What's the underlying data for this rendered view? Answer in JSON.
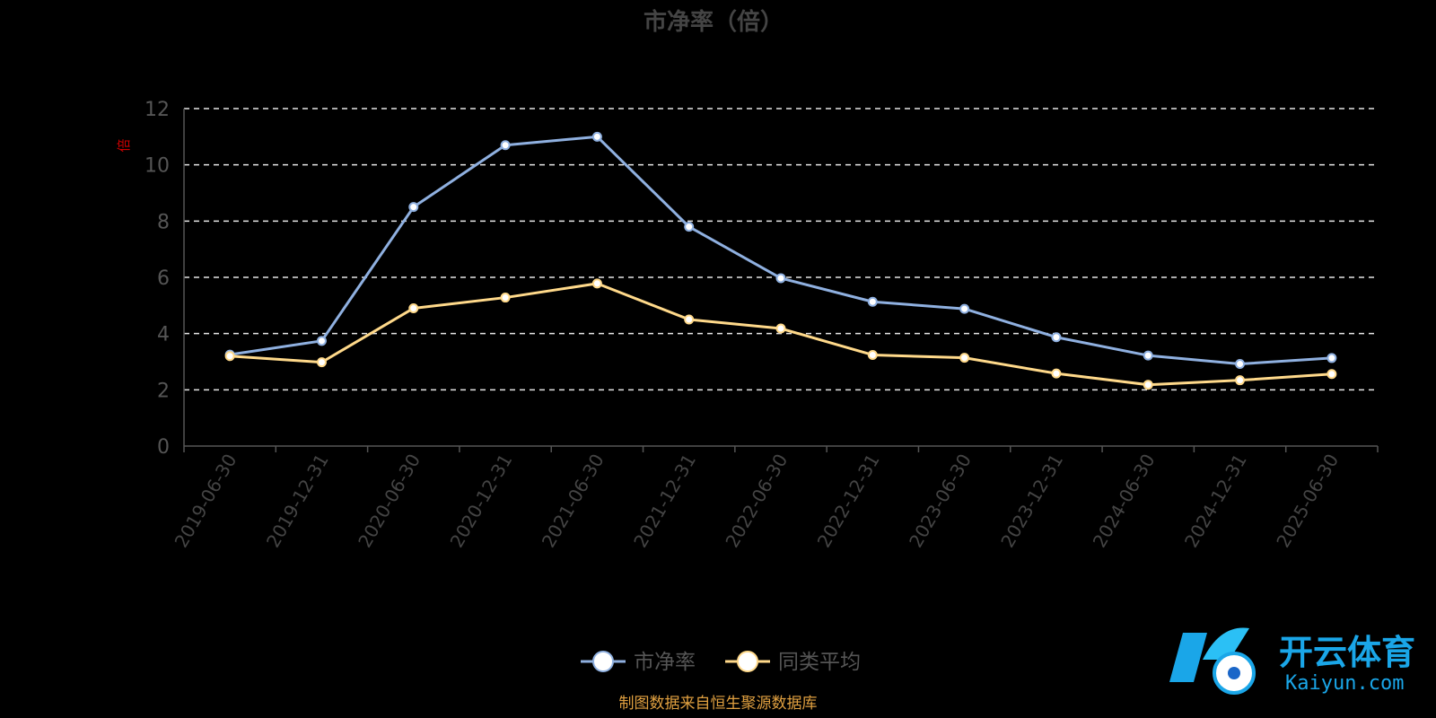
{
  "chart_data": {
    "type": "line",
    "title": "市净率（倍）",
    "ylabel": "倍",
    "ylim": [
      0,
      12
    ],
    "yticks": [
      0,
      2,
      4,
      6,
      8,
      10,
      12
    ],
    "grid": true,
    "legend_position": "bottom",
    "categories": [
      "2019-06-30",
      "2019-12-31",
      "2020-06-30",
      "2020-12-31",
      "2021-06-30",
      "2021-12-31",
      "2022-06-30",
      "2022-12-31",
      "2023-06-30",
      "2023-12-31",
      "2024-06-30",
      "2024-12-31",
      "2025-06-30"
    ],
    "series": [
      {
        "name": "市净率",
        "color": "#8fb0e0",
        "values": [
          3.25,
          3.74,
          8.5,
          10.7,
          11.0,
          7.8,
          5.97,
          5.13,
          4.88,
          3.87,
          3.22,
          2.92,
          3.13
        ]
      },
      {
        "name": "同类平均",
        "color": "#ffd98a",
        "values": [
          3.2,
          2.98,
          4.9,
          5.28,
          5.78,
          4.5,
          4.18,
          3.24,
          3.14,
          2.58,
          2.18,
          2.34,
          2.56
        ]
      }
    ]
  },
  "footer": "制图数据来自恒生聚源数据库",
  "watermark": {
    "cn": "开云体育",
    "en": "Kaiyun.com"
  }
}
